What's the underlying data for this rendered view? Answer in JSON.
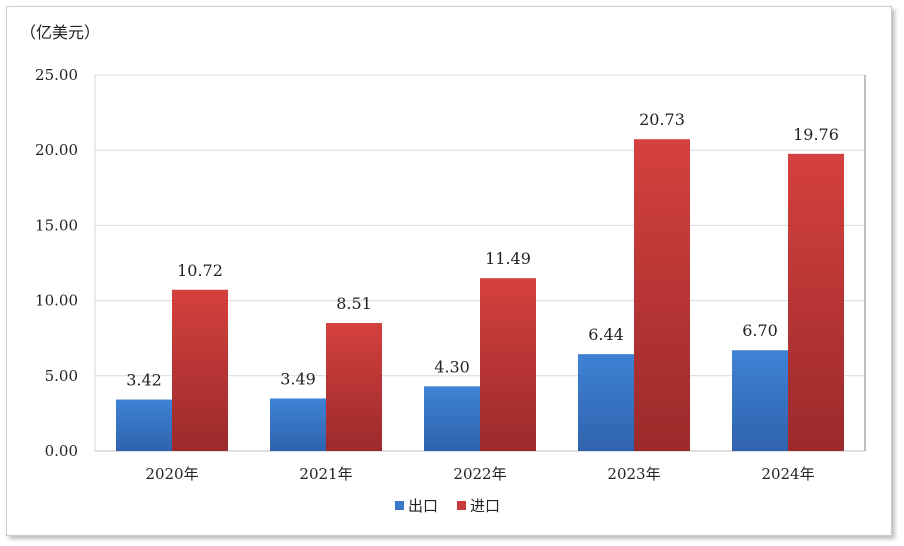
{
  "chart_data": {
    "type": "bar",
    "unit_label": "（亿美元）",
    "categories": [
      "2020年",
      "2021年",
      "2022年",
      "2023年",
      "2024年"
    ],
    "series": [
      {
        "name": "出口",
        "color": "#3b78c9",
        "values": [
          3.42,
          3.49,
          4.3,
          6.44,
          6.7
        ]
      },
      {
        "name": "进口",
        "color": "#c9393a",
        "values": [
          10.72,
          8.51,
          11.49,
          20.73,
          19.76
        ]
      }
    ],
    "data_labels": [
      [
        "3.42",
        "3.49",
        "4.30",
        "6.44",
        "6.70"
      ],
      [
        "10.72",
        "8.51",
        "11.49",
        "20.73",
        "19.76"
      ]
    ],
    "ylim": [
      0,
      25
    ],
    "y_ticks": [
      "0.00",
      "5.00",
      "10.00",
      "15.00",
      "20.00",
      "25.00"
    ],
    "grid": true,
    "legend_position": "bottom"
  }
}
